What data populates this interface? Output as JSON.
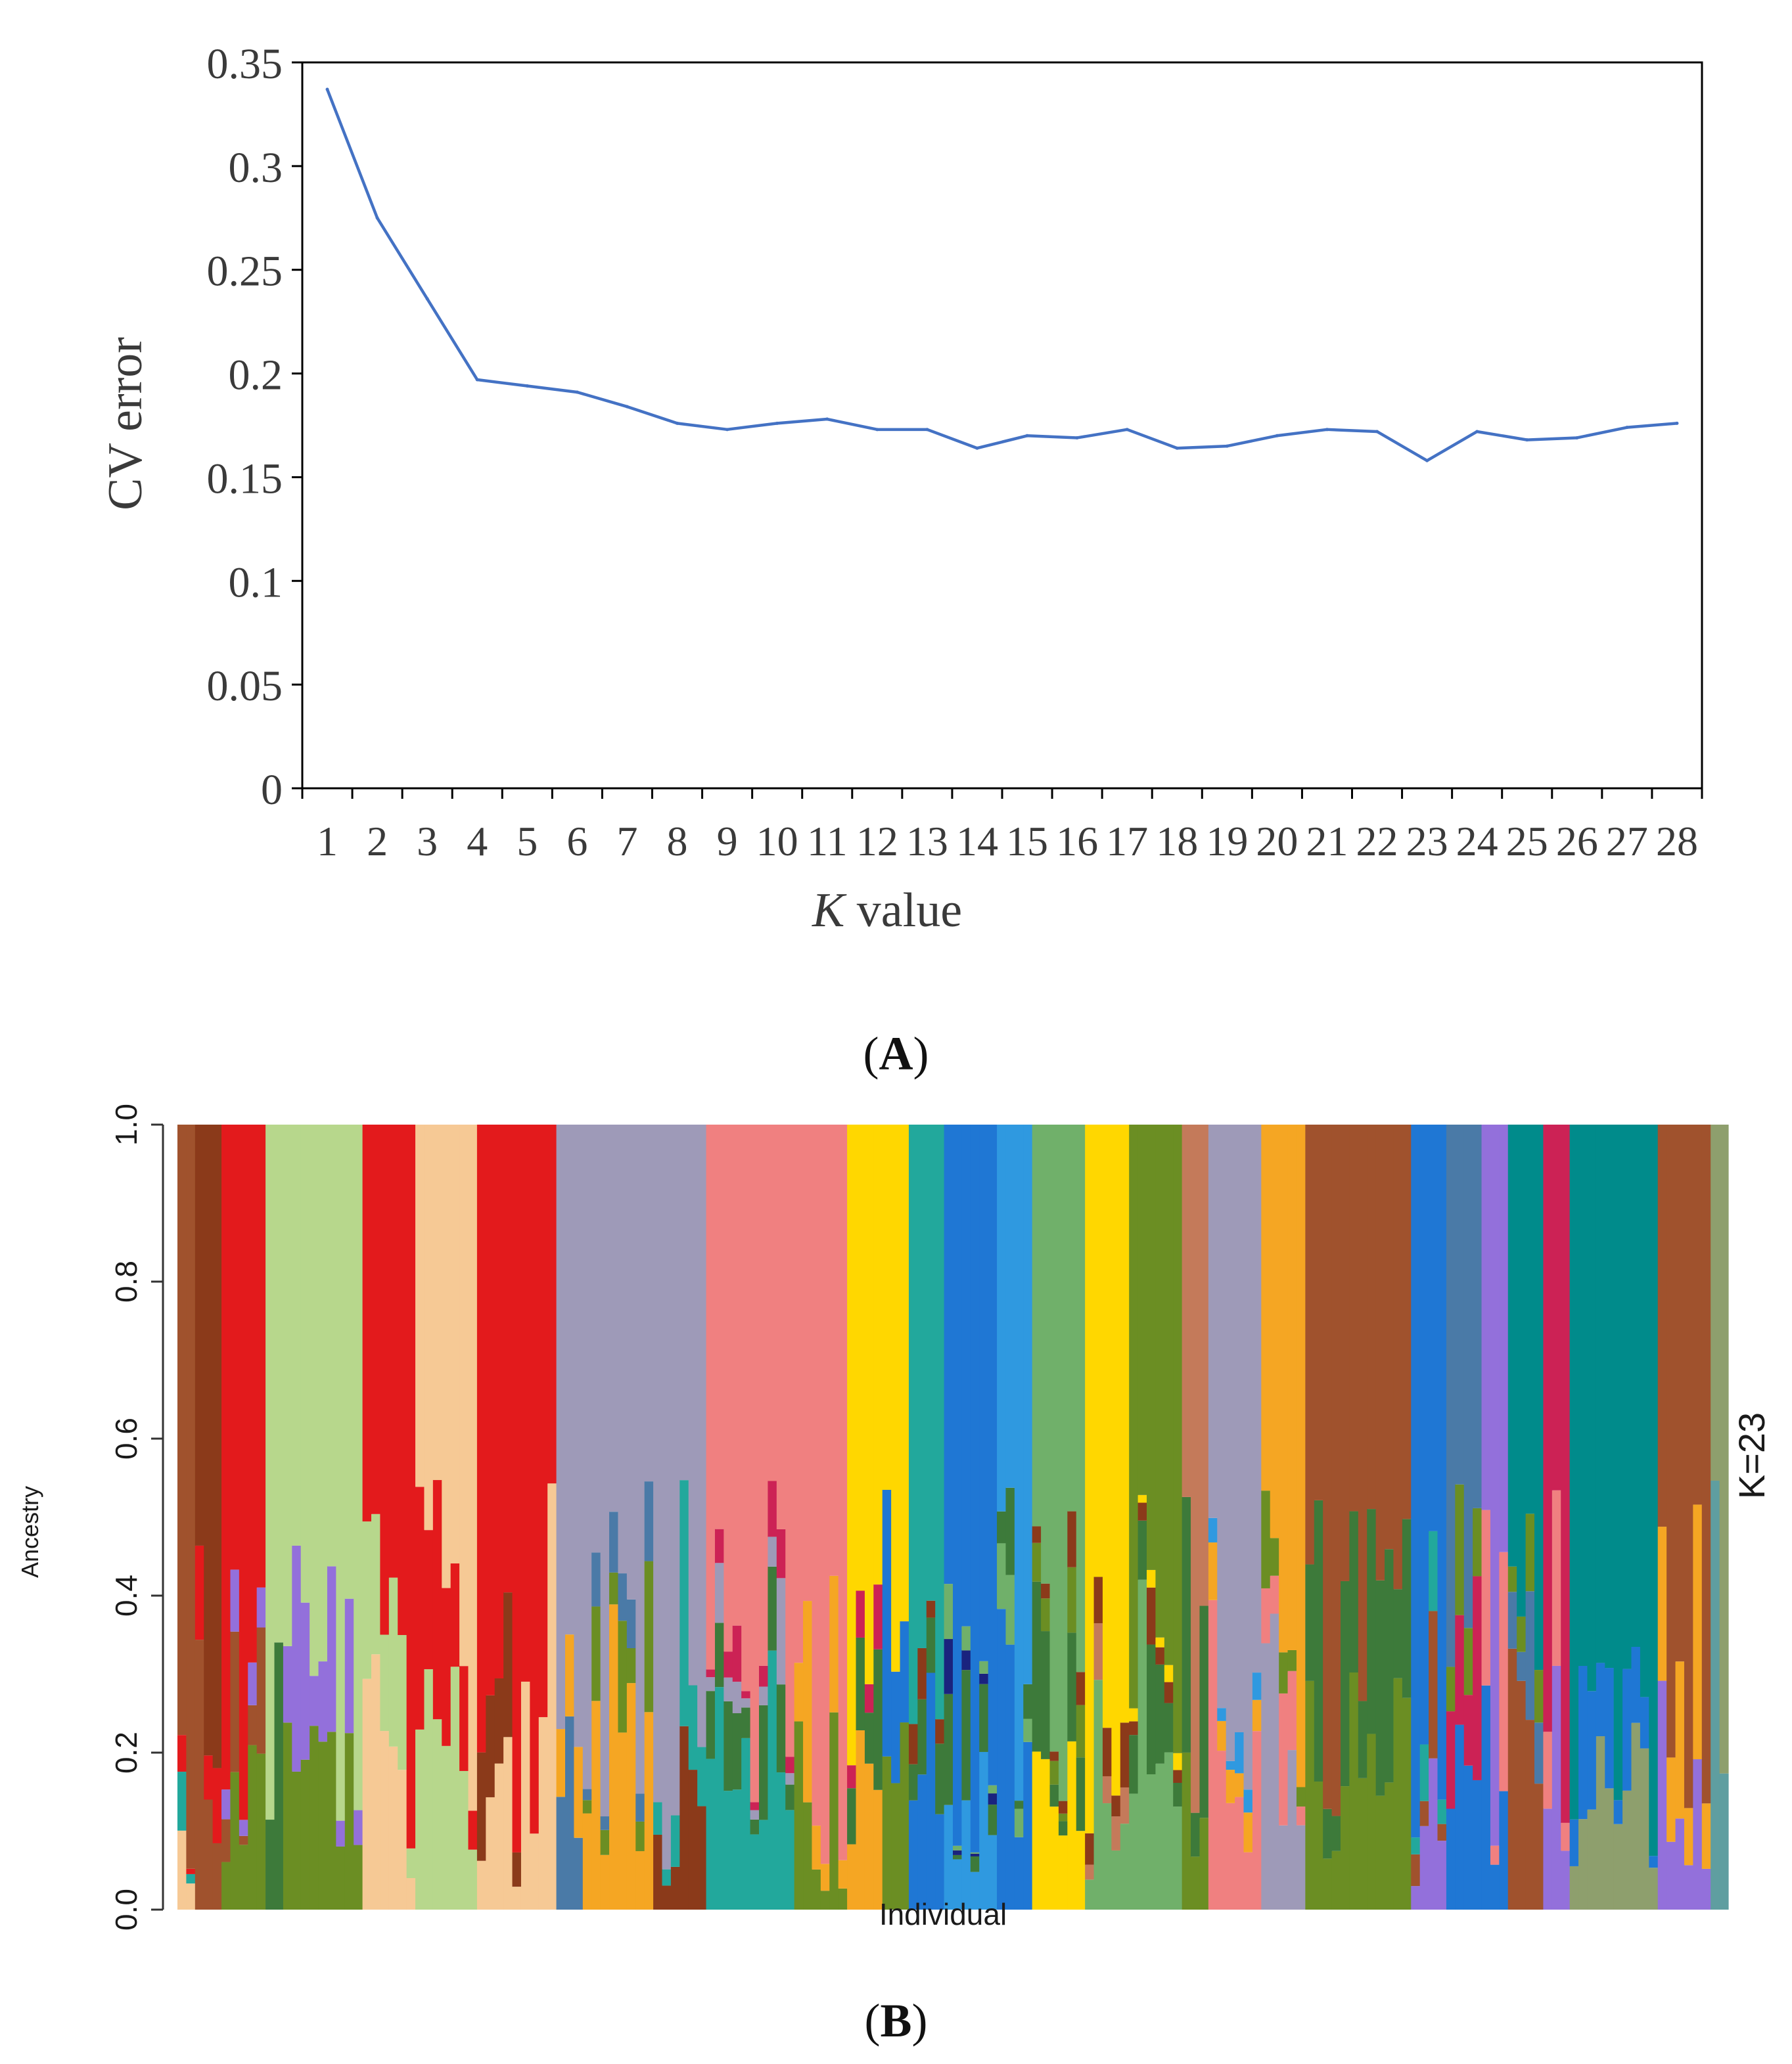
{
  "chart_data": [
    {
      "type": "line",
      "panel_label": "A",
      "xlabel_italic": "K",
      "xlabel_rest": " value",
      "ylabel": "CV error",
      "ylim": [
        0,
        0.35
      ],
      "yticks": [
        "0",
        "0.05",
        "0.1",
        "0.15",
        "0.2",
        "0.25",
        "0.3",
        "0.35"
      ],
      "x": [
        1,
        2,
        3,
        4,
        5,
        6,
        7,
        8,
        9,
        10,
        11,
        12,
        13,
        14,
        15,
        16,
        17,
        18,
        19,
        20,
        21,
        22,
        23,
        24,
        25,
        26,
        27,
        28
      ],
      "xtick_labels": [
        "1",
        "2",
        "3",
        "4",
        "5",
        "6",
        "7",
        "8",
        "9",
        "10",
        "11",
        "12",
        "13",
        "14",
        "15",
        "16",
        "17",
        "18",
        "19",
        "20",
        "21",
        "22",
        "23",
        "24",
        "25",
        "26",
        "27",
        "28"
      ],
      "series": [
        {
          "name": "CV error",
          "color": "#4472c4",
          "values": [
            0.337,
            0.275,
            0.236,
            0.197,
            0.194,
            0.191,
            0.184,
            0.176,
            0.173,
            0.176,
            0.178,
            0.173,
            0.173,
            0.164,
            0.17,
            0.169,
            0.173,
            0.164,
            0.165,
            0.17,
            0.173,
            0.172,
            0.158,
            0.172,
            0.168,
            0.169,
            0.174,
            0.176
          ]
        }
      ]
    },
    {
      "type": "bar",
      "stacked": true,
      "panel_label": "B",
      "xlabel": "Individual",
      "ylabel": "Ancestry",
      "ylim": [
        0,
        1
      ],
      "yticks": [
        "0.0",
        "0.2",
        "0.4",
        "0.6",
        "0.8",
        "1.0"
      ],
      "k_label": "K=23",
      "palette": [
        "#b7d78c",
        "#e31a1c",
        "#a0522d",
        "#f6c995",
        "#9e9ab8",
        "#4a7aa7",
        "#3d7a3a",
        "#f08080",
        "#ffd700",
        "#1f77d4",
        "#2f99e0",
        "#22a89c",
        "#8b3a1a",
        "#6b8e23",
        "#9370db",
        "#f5a623",
        "#c47a5a",
        "#1a237e",
        "#cc2255",
        "#70b06a",
        "#008b8b",
        "#8e9f6d",
        "#5f9ea0"
      ],
      "blocks": [
        {
          "n": 2,
          "colors": [
            2,
            3,
            11,
            1
          ]
        },
        {
          "n": 3,
          "colors": [
            12,
            2,
            1
          ]
        },
        {
          "n": 5,
          "colors": [
            1,
            13,
            2,
            14
          ]
        },
        {
          "n": 2,
          "colors": [
            0,
            6
          ]
        },
        {
          "n": 9,
          "colors": [
            0,
            13,
            14
          ]
        },
        {
          "n": 6,
          "colors": [
            1,
            3,
            0
          ]
        },
        {
          "n": 7,
          "colors": [
            3,
            0,
            1
          ]
        },
        {
          "n": 5,
          "colors": [
            1,
            3,
            12
          ]
        },
        {
          "n": 4,
          "colors": [
            1,
            3
          ]
        },
        {
          "n": 3,
          "colors": [
            4,
            5,
            15
          ]
        },
        {
          "n": 8,
          "colors": [
            4,
            15,
            13,
            5
          ]
        },
        {
          "n": 6,
          "colors": [
            4,
            12,
            11
          ]
        },
        {
          "n": 10,
          "colors": [
            7,
            11,
            6,
            4,
            18
          ]
        },
        {
          "n": 6,
          "colors": [
            7,
            13,
            15
          ]
        },
        {
          "n": 4,
          "colors": [
            8,
            15,
            6,
            18
          ]
        },
        {
          "n": 3,
          "colors": [
            8,
            13,
            9
          ]
        },
        {
          "n": 4,
          "colors": [
            11,
            9,
            6,
            12
          ]
        },
        {
          "n": 6,
          "colors": [
            9,
            10,
            6,
            17,
            19
          ]
        },
        {
          "n": 4,
          "colors": [
            10,
            9,
            19,
            6
          ]
        },
        {
          "n": 6,
          "colors": [
            19,
            8,
            6,
            13,
            12
          ]
        },
        {
          "n": 5,
          "colors": [
            8,
            19,
            16,
            12
          ]
        },
        {
          "n": 6,
          "colors": [
            13,
            19,
            6,
            12,
            8
          ]
        },
        {
          "n": 3,
          "colors": [
            16,
            13,
            6
          ]
        },
        {
          "n": 6,
          "colors": [
            4,
            7,
            15,
            10
          ]
        },
        {
          "n": 5,
          "colors": [
            15,
            4,
            7,
            13
          ]
        },
        {
          "n": 12,
          "colors": [
            2,
            13,
            6
          ]
        },
        {
          "n": 4,
          "colors": [
            9,
            14,
            2,
            11
          ]
        },
        {
          "n": 4,
          "colors": [
            5,
            9,
            18,
            13
          ]
        },
        {
          "n": 3,
          "colors": [
            14,
            9,
            7
          ]
        },
        {
          "n": 4,
          "colors": [
            20,
            2,
            5,
            13
          ]
        },
        {
          "n": 3,
          "colors": [
            18,
            14,
            7
          ]
        },
        {
          "n": 10,
          "colors": [
            20,
            21,
            9
          ]
        },
        {
          "n": 6,
          "colors": [
            2,
            14,
            15
          ]
        },
        {
          "n": 2,
          "colors": [
            21,
            22
          ]
        }
      ]
    }
  ]
}
